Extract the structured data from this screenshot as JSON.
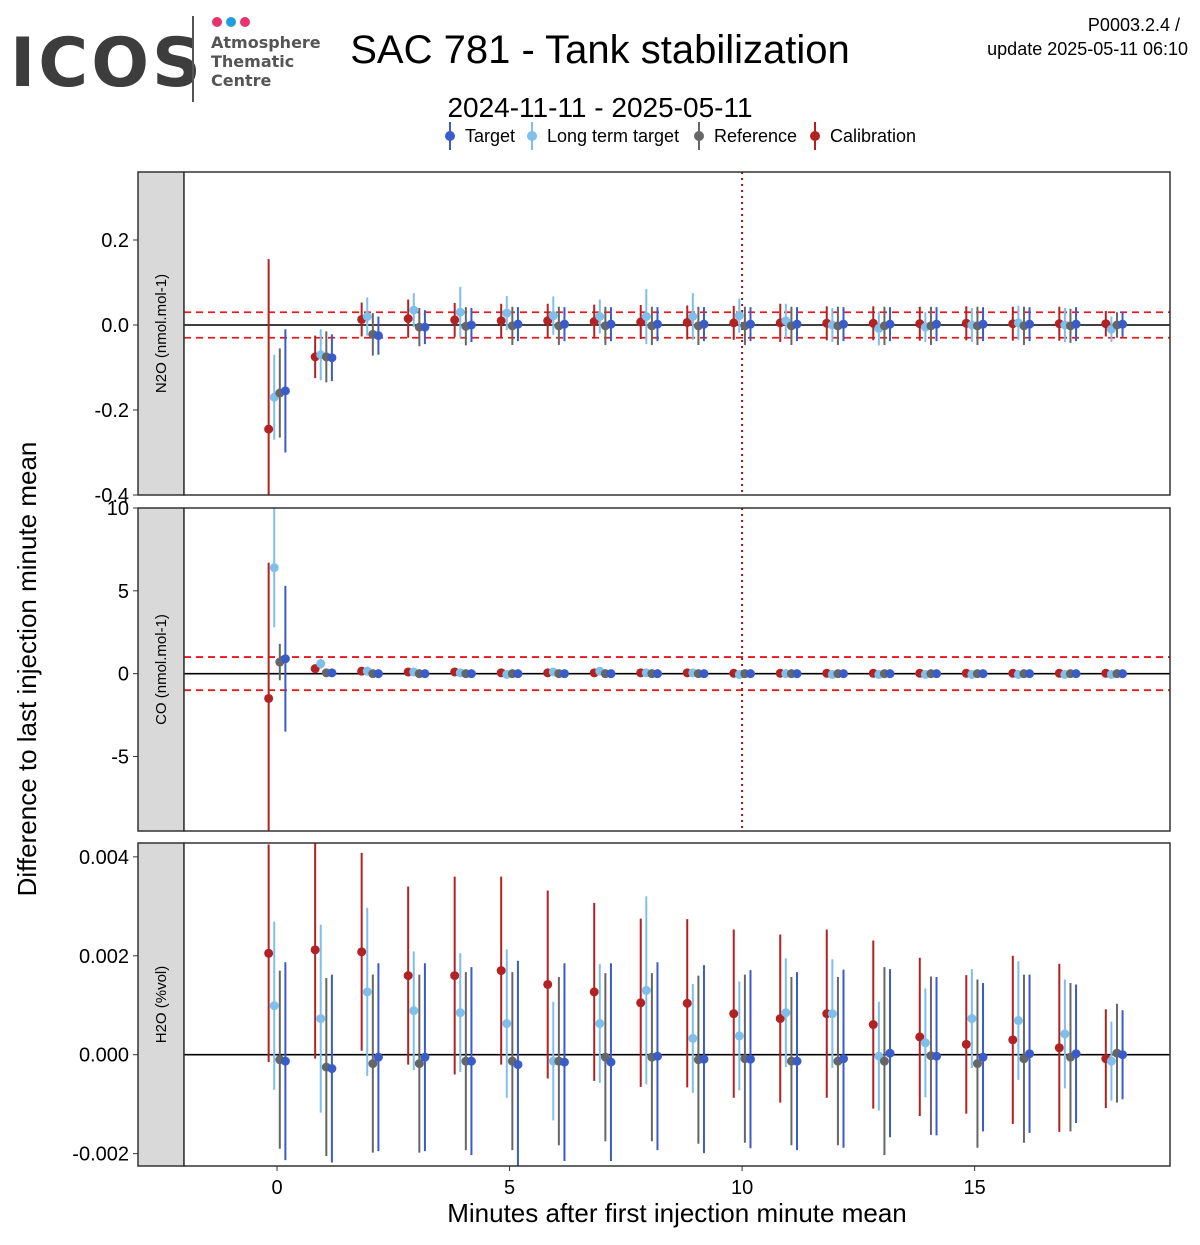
{
  "header": {
    "logo_text": "ICOS",
    "logo_lines": [
      "Atmosphere",
      "Thematic",
      "Centre"
    ],
    "logo_dot_colors": [
      "#e8336f",
      "#1f9fe0",
      "#e8336f"
    ],
    "title": "SAC 781 - Tank stabilization",
    "subtitle": "2024-11-11 - 2025-05-11",
    "version": "P0003.2.4 /",
    "update": "update  2025-05-11 06:10"
  },
  "chart_data": {
    "type": "scatter",
    "xlabel": "Minutes after first injection minute mean",
    "ylabel": "Difference to last injection minute mean",
    "xlim": [
      -2,
      19.2
    ],
    "xticks": [
      0,
      5,
      10,
      15
    ],
    "vline_x": 10,
    "legend": [
      {
        "name": "Target",
        "color": "#3a5cc9"
      },
      {
        "name": "Long term target",
        "color": "#7fbfeb"
      },
      {
        "name": "Reference",
        "color": "#666666"
      },
      {
        "name": "Calibration",
        "color": "#b22222"
      }
    ],
    "series_offsets": {
      "Calibration": -0.18,
      "Long term target": -0.06,
      "Reference": 0.06,
      "Target": 0.18
    },
    "panels": [
      {
        "name": "N2O",
        "strip_label": "N2O (nmol.mol-1)",
        "ylim": [
          -0.4,
          0.36
        ],
        "yticks": [
          0.2,
          0.0,
          -0.2,
          -0.4
        ],
        "ytick_labels": [
          "0.2",
          "0.0",
          "-0.2",
          "-0.4"
        ],
        "hlines": [
          -0.03,
          0.03
        ],
        "series": [
          {
            "name": "Calibration",
            "minutes": [
              0,
              1,
              2,
              3,
              4,
              5,
              6,
              7,
              8,
              9,
              10,
              11,
              12,
              13,
              14,
              15,
              16,
              17,
              18
            ],
            "values": [
              -0.245,
              -0.075,
              0.013,
              0.015,
              0.012,
              0.01,
              0.01,
              0.008,
              0.007,
              0.006,
              0.005,
              0.005,
              0.004,
              0.004,
              0.003,
              0.004,
              0.003,
              0.003,
              0.003
            ],
            "err": [
              0.4,
              0.05,
              0.04,
              0.045,
              0.04,
              0.04,
              0.04,
              0.04,
              0.04,
              0.04,
              0.04,
              0.045,
              0.04,
              0.04,
              0.04,
              0.04,
              0.04,
              0.04,
              0.03
            ]
          },
          {
            "name": "Long term target",
            "minutes": [
              0,
              1,
              2,
              3,
              4,
              5,
              6,
              7,
              8,
              9,
              10,
              11,
              12,
              13,
              14,
              15,
              16,
              17,
              18
            ],
            "values": [
              -0.17,
              -0.07,
              0.02,
              0.035,
              0.03,
              0.028,
              0.022,
              0.02,
              0.02,
              0.02,
              0.022,
              0.01,
              0.0,
              -0.008,
              -0.005,
              0.0,
              0.005,
              0.0,
              -0.01
            ],
            "err": [
              0.1,
              0.06,
              0.045,
              0.04,
              0.06,
              0.04,
              0.045,
              0.04,
              0.065,
              0.055,
              0.04,
              0.04,
              0.04,
              0.04,
              0.035,
              0.04,
              0.04,
              0.04,
              0.03
            ]
          },
          {
            "name": "Reference",
            "minutes": [
              0,
              1,
              2,
              3,
              4,
              5,
              6,
              7,
              8,
              9,
              10,
              11,
              12,
              13,
              14,
              15,
              16,
              17,
              18
            ],
            "values": [
              -0.16,
              -0.075,
              -0.022,
              -0.005,
              -0.003,
              -0.002,
              -0.002,
              -0.002,
              -0.002,
              -0.002,
              -0.002,
              -0.002,
              -0.002,
              -0.002,
              -0.002,
              -0.002,
              -0.002,
              -0.002,
              0.0
            ],
            "err": [
              0.105,
              0.06,
              0.05,
              0.045,
              0.045,
              0.045,
              0.045,
              0.045,
              0.045,
              0.045,
              0.045,
              0.045,
              0.045,
              0.045,
              0.045,
              0.045,
              0.045,
              0.04,
              0.03
            ]
          },
          {
            "name": "Target",
            "minutes": [
              0,
              1,
              2,
              3,
              4,
              5,
              6,
              7,
              8,
              9,
              10,
              11,
              12,
              13,
              14,
              15,
              16,
              17,
              18
            ],
            "values": [
              -0.155,
              -0.077,
              -0.025,
              -0.005,
              0.0,
              0.002,
              0.002,
              0.002,
              0.002,
              0.002,
              0.002,
              0.002,
              0.002,
              0.002,
              0.002,
              0.002,
              0.002,
              0.002,
              0.002
            ],
            "err": [
              0.145,
              0.055,
              0.045,
              0.04,
              0.04,
              0.04,
              0.04,
              0.04,
              0.04,
              0.04,
              0.04,
              0.04,
              0.04,
              0.04,
              0.04,
              0.04,
              0.04,
              0.04,
              0.03
            ]
          }
        ]
      },
      {
        "name": "CO",
        "strip_label": "CO (nmol.mol-1)",
        "ylim": [
          -9.5,
          10
        ],
        "yticks": [
          10,
          5,
          0,
          -5
        ],
        "ytick_labels": [
          "10",
          "5",
          "0",
          "-5"
        ],
        "hlines": [
          -1,
          1
        ],
        "series": [
          {
            "name": "Calibration",
            "minutes": [
              0,
              1,
              2,
              3,
              4,
              5,
              6,
              7,
              8,
              9,
              10,
              11,
              12,
              13,
              14,
              15,
              16,
              17,
              18
            ],
            "values": [
              -1.5,
              0.3,
              0.15,
              0.1,
              0.1,
              0.05,
              0.05,
              0.05,
              0.05,
              0.05,
              0.02,
              0.02,
              0.02,
              0.02,
              0.02,
              0.02,
              0.02,
              0.02,
              0.02
            ],
            "err": [
              8.2,
              0.2,
              0.15,
              0.15,
              0.15,
              0.15,
              0.15,
              0.15,
              0.15,
              0.15,
              0.15,
              0.15,
              0.15,
              0.15,
              0.15,
              0.15,
              0.15,
              0.15,
              0.15
            ]
          },
          {
            "name": "Long term target",
            "minutes": [
              0,
              1,
              2,
              3,
              4,
              5,
              6,
              7,
              8,
              9,
              10,
              11,
              12,
              13,
              14,
              15,
              16,
              17,
              18
            ],
            "values": [
              6.4,
              0.6,
              0.15,
              0.1,
              0.05,
              -0.05,
              0.1,
              0.15,
              0.05,
              0.05,
              -0.05,
              0.0,
              -0.05,
              -0.05,
              -0.05,
              -0.05,
              -0.05,
              -0.05,
              -0.05
            ],
            "err": [
              3.6,
              0.3,
              0.2,
              0.2,
              0.2,
              0.2,
              0.2,
              0.2,
              0.2,
              0.2,
              0.2,
              0.2,
              0.2,
              0.2,
              0.2,
              0.2,
              0.2,
              0.2,
              0.2
            ]
          },
          {
            "name": "Reference",
            "minutes": [
              0,
              1,
              2,
              3,
              4,
              5,
              6,
              7,
              8,
              9,
              10,
              11,
              12,
              13,
              14,
              15,
              16,
              17,
              18
            ],
            "values": [
              0.7,
              0.05,
              0.0,
              0.0,
              0.0,
              0.0,
              0.0,
              0.0,
              0.0,
              0.0,
              0.0,
              0.0,
              0.0,
              0.0,
              0.0,
              0.0,
              0.0,
              0.0,
              0.0
            ],
            "err": [
              1.1,
              0.2,
              0.2,
              0.2,
              0.2,
              0.2,
              0.2,
              0.2,
              0.2,
              0.2,
              0.2,
              0.2,
              0.2,
              0.2,
              0.2,
              0.2,
              0.2,
              0.2,
              0.2
            ]
          },
          {
            "name": "Target",
            "minutes": [
              0,
              1,
              2,
              3,
              4,
              5,
              6,
              7,
              8,
              9,
              10,
              11,
              12,
              13,
              14,
              15,
              16,
              17,
              18
            ],
            "values": [
              0.9,
              0.05,
              0.0,
              0.0,
              0.0,
              0.0,
              0.0,
              0.0,
              0.0,
              0.0,
              0.0,
              0.0,
              0.0,
              0.0,
              0.0,
              0.0,
              0.0,
              0.0,
              0.0
            ],
            "err": [
              4.4,
              0.2,
              0.2,
              0.2,
              0.2,
              0.2,
              0.2,
              0.2,
              0.2,
              0.2,
              0.2,
              0.2,
              0.2,
              0.2,
              0.2,
              0.2,
              0.2,
              0.2,
              0.2
            ]
          }
        ]
      },
      {
        "name": "H2O",
        "strip_label": "H2O (%vol)",
        "ylim": [
          -0.00225,
          0.00428
        ],
        "yticks": [
          0.004,
          0.002,
          0.0,
          -0.002
        ],
        "ytick_labels": [
          "0.004",
          "0.002",
          "0.000",
          "-0.002"
        ],
        "hlines": [],
        "series": [
          {
            "name": "Calibration",
            "minutes": [
              0,
              1,
              2,
              3,
              4,
              5,
              6,
              7,
              8,
              9,
              10,
              11,
              12,
              13,
              14,
              15,
              16,
              17,
              18
            ],
            "values": [
              0.00205,
              0.00212,
              0.00208,
              0.0016,
              0.0016,
              0.0017,
              0.00142,
              0.00127,
              0.00105,
              0.00104,
              0.00083,
              0.00073,
              0.00083,
              0.00061,
              0.00036,
              0.00021,
              0.0003,
              0.00014,
              -8e-05
            ],
            "err": [
              0.0022,
              0.0022,
              0.002,
              0.0018,
              0.002,
              0.0019,
              0.0019,
              0.0018,
              0.0017,
              0.0017,
              0.0017,
              0.0017,
              0.0017,
              0.0017,
              0.0016,
              0.0014,
              0.0017,
              0.0017,
              0.001
            ]
          },
          {
            "name": "Long term target",
            "minutes": [
              0,
              1,
              2,
              3,
              4,
              5,
              6,
              7,
              8,
              9,
              10,
              11,
              12,
              13,
              14,
              15,
              16,
              17,
              18
            ],
            "values": [
              0.00099,
              0.00073,
              0.00127,
              0.00089,
              0.00085,
              0.00063,
              -0.00013,
              0.00063,
              0.0013,
              0.00033,
              0.00038,
              0.00085,
              0.00083,
              -3e-05,
              0.00024,
              0.00073,
              0.00069,
              0.00042,
              -0.00013
            ],
            "err": [
              0.0017,
              0.0019,
              0.0017,
              0.0012,
              0.0012,
              0.0015,
              0.0012,
              0.0012,
              0.0019,
              0.0011,
              0.0011,
              0.0011,
              0.0011,
              0.0011,
              0.0011,
              0.001,
              0.0012,
              0.0011,
              0.0008
            ]
          },
          {
            "name": "Reference",
            "minutes": [
              0,
              1,
              2,
              3,
              4,
              5,
              6,
              7,
              8,
              9,
              10,
              11,
              12,
              13,
              14,
              15,
              16,
              17,
              18
            ],
            "values": [
              -0.0001,
              -0.00025,
              -0.00018,
              -0.00018,
              -0.00013,
              -0.00013,
              -0.00013,
              -5e-05,
              -5e-05,
              -0.0001,
              -8e-05,
              -0.00013,
              -0.00013,
              -0.00013,
              -2e-05,
              -0.00018,
              -8e-05,
              -5e-05,
              3e-05
            ],
            "err": [
              0.0018,
              0.0018,
              0.0018,
              0.0018,
              0.0018,
              0.0018,
              0.0017,
              0.0017,
              0.0017,
              0.0017,
              0.0017,
              0.0017,
              0.0017,
              0.0019,
              0.0016,
              0.0017,
              0.0017,
              0.0015,
              0.001
            ]
          },
          {
            "name": "Target",
            "minutes": [
              0,
              1,
              2,
              3,
              4,
              5,
              6,
              7,
              8,
              9,
              10,
              11,
              12,
              13,
              14,
              15,
              16,
              17,
              18
            ],
            "values": [
              -0.00013,
              -0.00028,
              -5e-05,
              -5e-05,
              -0.00013,
              -0.0002,
              -0.00015,
              -0.00015,
              -3e-05,
              -9e-05,
              -9e-05,
              -0.00013,
              -8e-05,
              3e-05,
              -3e-05,
              -5e-05,
              2e-05,
              2e-05,
              0.0
            ],
            "err": [
              0.002,
              0.0019,
              0.0019,
              0.0019,
              0.0019,
              0.0021,
              0.002,
              0.002,
              0.0019,
              0.0019,
              0.0018,
              0.0018,
              0.0018,
              0.0017,
              0.0016,
              0.0015,
              0.0016,
              0.0014,
              0.0009
            ]
          }
        ]
      }
    ]
  }
}
